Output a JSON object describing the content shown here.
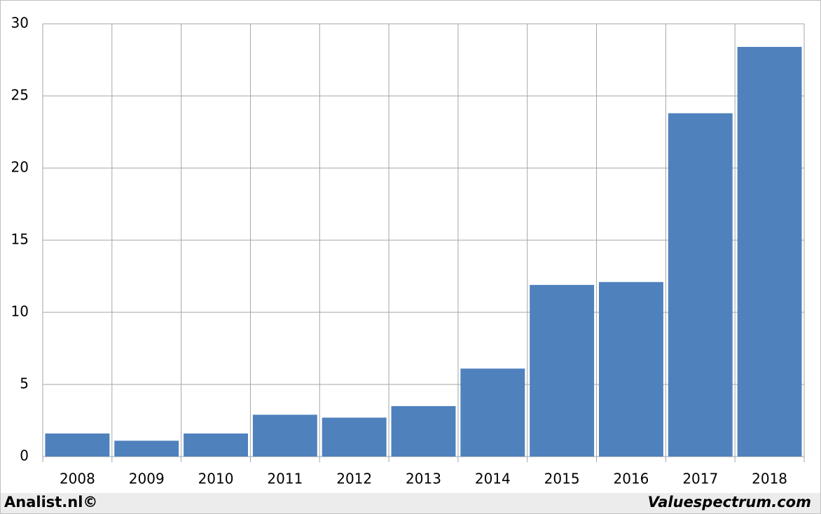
{
  "chart_data": {
    "type": "bar",
    "categories": [
      "2008",
      "2009",
      "2010",
      "2011",
      "2012",
      "2013",
      "2014",
      "2015",
      "2016",
      "2017",
      "2018"
    ],
    "values": [
      1.6,
      1.1,
      1.6,
      2.9,
      2.7,
      3.5,
      6.1,
      11.9,
      12.1,
      23.8,
      28.4
    ],
    "color": "#4f81bd",
    "ylim": [
      0,
      30
    ],
    "yticks": [
      0,
      5,
      10,
      15,
      20,
      25,
      30
    ],
    "grid": true
  },
  "footer": {
    "left": "Analist.nl©",
    "right": "Valuespectrum.com"
  }
}
